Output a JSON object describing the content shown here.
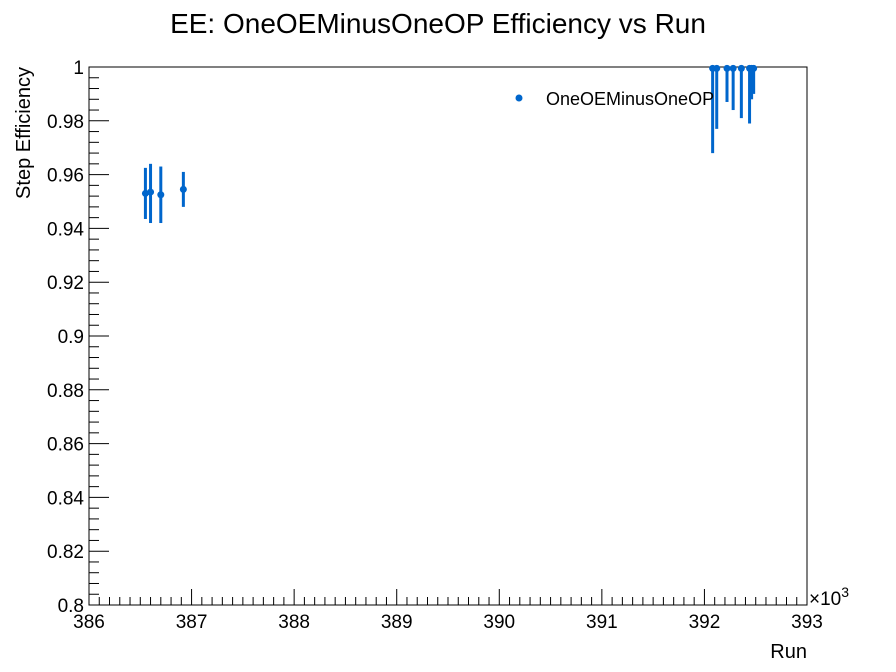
{
  "chart_data": {
    "type": "scatter",
    "title": "EE: OneOEMinusOneOP Efficiency vs Run",
    "xlabel": "Run",
    "ylabel": "Step Efficiency",
    "x_multiplier_label": "×10",
    "x_multiplier_exp": "3",
    "xlim": [
      386,
      393
    ],
    "ylim": [
      0.8,
      1.0
    ],
    "x_ticks": [
      386,
      387,
      388,
      389,
      390,
      391,
      392,
      393
    ],
    "x_tick_labels": [
      "386",
      "387",
      "388",
      "389",
      "390",
      "391",
      "392",
      "393"
    ],
    "y_ticks": [
      0.8,
      0.82,
      0.84,
      0.86,
      0.88,
      0.9,
      0.92,
      0.94,
      0.96,
      0.98,
      1.0
    ],
    "y_tick_labels": [
      "0.8",
      "0.82",
      "0.84",
      "0.86",
      "0.88",
      "0.9",
      "0.92",
      "0.94",
      "0.96",
      "0.98",
      "1"
    ],
    "grid": false,
    "legend_position": "top-right",
    "series": [
      {
        "name": "OneOEMinusOneOP",
        "color": "#0066cc",
        "points": [
          {
            "x": 386.55,
            "y": 0.953,
            "lo": 0.9435,
            "hi": 0.9625
          },
          {
            "x": 386.6,
            "y": 0.9535,
            "lo": 0.942,
            "hi": 0.964
          },
          {
            "x": 386.7,
            "y": 0.9525,
            "lo": 0.942,
            "hi": 0.963
          },
          {
            "x": 386.92,
            "y": 0.9545,
            "lo": 0.948,
            "hi": 0.961
          },
          {
            "x": 392.08,
            "y": 0.9995,
            "lo": 0.968,
            "hi": 1.0
          },
          {
            "x": 392.12,
            "y": 0.9995,
            "lo": 0.977,
            "hi": 1.0
          },
          {
            "x": 392.22,
            "y": 0.9995,
            "lo": 0.987,
            "hi": 1.0
          },
          {
            "x": 392.28,
            "y": 0.9995,
            "lo": 0.984,
            "hi": 1.0
          },
          {
            "x": 392.36,
            "y": 0.9995,
            "lo": 0.981,
            "hi": 1.0
          },
          {
            "x": 392.44,
            "y": 0.9995,
            "lo": 0.979,
            "hi": 1.0
          },
          {
            "x": 392.46,
            "y": 0.9995,
            "lo": 0.988,
            "hi": 1.0
          },
          {
            "x": 392.48,
            "y": 0.9995,
            "lo": 0.99,
            "hi": 1.0
          }
        ]
      }
    ]
  }
}
